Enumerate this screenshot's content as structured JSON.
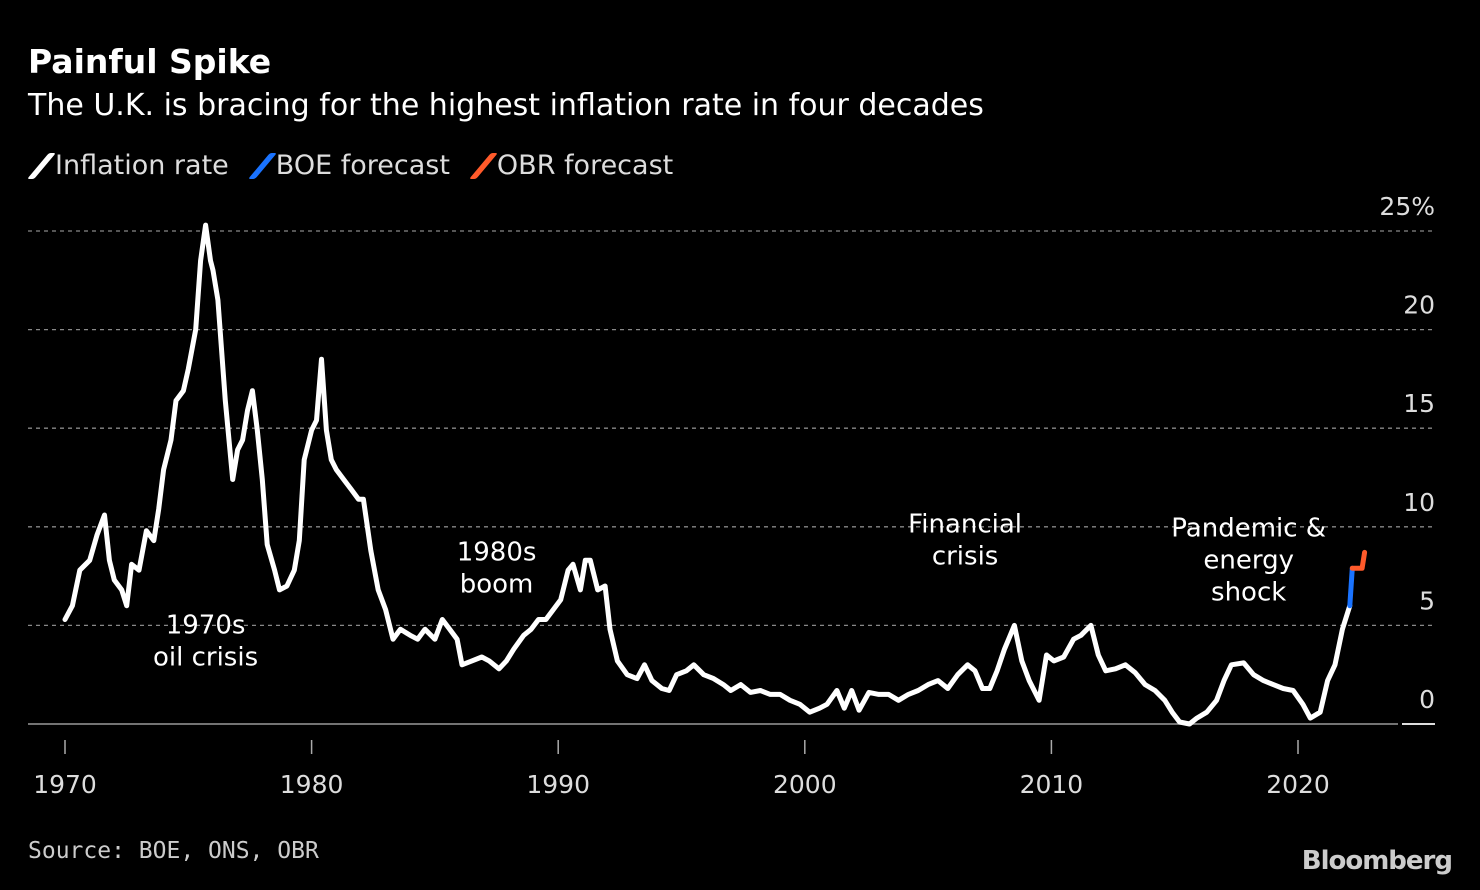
{
  "title": "Painful Spike",
  "subtitle": "The U.K. is bracing for the highest inflation rate in four decades",
  "source": "Source: BOE, ONS, OBR",
  "logo": "Bloomberg",
  "colors": {
    "inflation": "#ffffff",
    "boe": "#1a73ff",
    "obr": "#ff5a2a",
    "grid": "#777777",
    "text": "#dddddd"
  },
  "chart_data": {
    "type": "line",
    "title": "Painful Spike",
    "subtitle": "The U.K. is bracing for the highest inflation rate in four decades",
    "xlim": [
      1968.5,
      2025.5
    ],
    "ylim": [
      0,
      25
    ],
    "x_ticks": [
      1970,
      1980,
      1990,
      2000,
      2010,
      2020
    ],
    "x_tick_labels": [
      "1970",
      "1980",
      "1990",
      "2000",
      "2010",
      "2020"
    ],
    "y_ticks": [
      0,
      5,
      10,
      15,
      20,
      25
    ],
    "y_tick_labels": [
      "0",
      "5",
      "10",
      "15",
      "20",
      "25%"
    ],
    "grid": true,
    "legend": {
      "placement": "top-left",
      "entries": [
        "Inflation rate",
        "BOE forecast",
        "OBR forecast"
      ]
    },
    "series": [
      {
        "name": "Inflation rate",
        "color": "#ffffff",
        "points": [
          [
            1970.0,
            5.3
          ],
          [
            1970.3,
            6.0
          ],
          [
            1970.6,
            7.8
          ],
          [
            1971.0,
            8.3
          ],
          [
            1971.3,
            9.6
          ],
          [
            1971.6,
            10.6
          ],
          [
            1971.8,
            8.3
          ],
          [
            1972.0,
            7.3
          ],
          [
            1972.3,
            6.8
          ],
          [
            1972.5,
            6.0
          ],
          [
            1972.7,
            8.1
          ],
          [
            1973.0,
            7.8
          ],
          [
            1973.3,
            9.8
          ],
          [
            1973.6,
            9.3
          ],
          [
            1973.8,
            10.9
          ],
          [
            1974.0,
            12.9
          ],
          [
            1974.3,
            14.4
          ],
          [
            1974.5,
            16.4
          ],
          [
            1974.8,
            16.9
          ],
          [
            1975.0,
            18.0
          ],
          [
            1975.3,
            20.0
          ],
          [
            1975.5,
            23.5
          ],
          [
            1975.7,
            25.3
          ],
          [
            1975.9,
            23.5
          ],
          [
            1976.0,
            23.0
          ],
          [
            1976.2,
            21.5
          ],
          [
            1976.5,
            16.4
          ],
          [
            1976.8,
            12.4
          ],
          [
            1977.0,
            13.9
          ],
          [
            1977.2,
            14.4
          ],
          [
            1977.4,
            15.9
          ],
          [
            1977.6,
            16.9
          ],
          [
            1977.8,
            14.9
          ],
          [
            1978.0,
            12.4
          ],
          [
            1978.2,
            9.1
          ],
          [
            1978.5,
            7.8
          ],
          [
            1978.7,
            6.8
          ],
          [
            1979.0,
            7.0
          ],
          [
            1979.3,
            7.8
          ],
          [
            1979.5,
            9.3
          ],
          [
            1979.7,
            13.4
          ],
          [
            1980.0,
            14.9
          ],
          [
            1980.2,
            15.4
          ],
          [
            1980.4,
            18.5
          ],
          [
            1980.6,
            14.9
          ],
          [
            1980.8,
            13.4
          ],
          [
            1981.0,
            12.9
          ],
          [
            1981.3,
            12.4
          ],
          [
            1981.6,
            11.9
          ],
          [
            1981.9,
            11.4
          ],
          [
            1982.1,
            11.4
          ],
          [
            1982.4,
            8.8
          ],
          [
            1982.7,
            6.8
          ],
          [
            1983.0,
            5.8
          ],
          [
            1983.3,
            4.3
          ],
          [
            1983.6,
            4.8
          ],
          [
            1984.0,
            4.5
          ],
          [
            1984.3,
            4.3
          ],
          [
            1984.6,
            4.8
          ],
          [
            1985.0,
            4.3
          ],
          [
            1985.3,
            5.3
          ],
          [
            1985.6,
            4.8
          ],
          [
            1985.9,
            4.3
          ],
          [
            1986.1,
            3.0
          ],
          [
            1986.5,
            3.2
          ],
          [
            1986.9,
            3.4
          ],
          [
            1987.2,
            3.2
          ],
          [
            1987.6,
            2.8
          ],
          [
            1987.9,
            3.2
          ],
          [
            1988.2,
            3.8
          ],
          [
            1988.6,
            4.5
          ],
          [
            1988.9,
            4.8
          ],
          [
            1989.2,
            5.3
          ],
          [
            1989.5,
            5.3
          ],
          [
            1989.8,
            5.8
          ],
          [
            1990.1,
            6.3
          ],
          [
            1990.4,
            7.8
          ],
          [
            1990.6,
            8.1
          ],
          [
            1990.9,
            6.8
          ],
          [
            1991.1,
            8.3
          ],
          [
            1991.3,
            8.3
          ],
          [
            1991.6,
            6.8
          ],
          [
            1991.9,
            7.0
          ],
          [
            1992.1,
            4.8
          ],
          [
            1992.4,
            3.2
          ],
          [
            1992.8,
            2.5
          ],
          [
            1993.2,
            2.3
          ],
          [
            1993.5,
            3.0
          ],
          [
            1993.8,
            2.2
          ],
          [
            1994.2,
            1.8
          ],
          [
            1994.5,
            1.7
          ],
          [
            1994.8,
            2.5
          ],
          [
            1995.2,
            2.7
          ],
          [
            1995.5,
            3.0
          ],
          [
            1995.9,
            2.5
          ],
          [
            1996.3,
            2.3
          ],
          [
            1996.7,
            2.0
          ],
          [
            1997.0,
            1.7
          ],
          [
            1997.4,
            2.0
          ],
          [
            1997.8,
            1.6
          ],
          [
            1998.2,
            1.7
          ],
          [
            1998.6,
            1.5
          ],
          [
            1999.0,
            1.5
          ],
          [
            1999.4,
            1.2
          ],
          [
            1999.8,
            1.0
          ],
          [
            2000.2,
            0.6
          ],
          [
            2000.6,
            0.8
          ],
          [
            2000.9,
            1.0
          ],
          [
            2001.3,
            1.7
          ],
          [
            2001.6,
            0.8
          ],
          [
            2001.9,
            1.7
          ],
          [
            2002.2,
            0.7
          ],
          [
            2002.6,
            1.6
          ],
          [
            2003.0,
            1.5
          ],
          [
            2003.4,
            1.5
          ],
          [
            2003.8,
            1.2
          ],
          [
            2004.2,
            1.5
          ],
          [
            2004.6,
            1.7
          ],
          [
            2005.0,
            2.0
          ],
          [
            2005.4,
            2.2
          ],
          [
            2005.8,
            1.8
          ],
          [
            2006.2,
            2.5
          ],
          [
            2006.6,
            3.0
          ],
          [
            2006.9,
            2.7
          ],
          [
            2007.2,
            1.8
          ],
          [
            2007.5,
            1.8
          ],
          [
            2007.8,
            2.7
          ],
          [
            2008.1,
            3.8
          ],
          [
            2008.5,
            5.0
          ],
          [
            2008.8,
            3.2
          ],
          [
            2009.1,
            2.2
          ],
          [
            2009.5,
            1.2
          ],
          [
            2009.8,
            3.5
          ],
          [
            2010.1,
            3.2
          ],
          [
            2010.5,
            3.4
          ],
          [
            2010.9,
            4.3
          ],
          [
            2011.2,
            4.5
          ],
          [
            2011.6,
            5.0
          ],
          [
            2011.9,
            3.5
          ],
          [
            2012.2,
            2.7
          ],
          [
            2012.6,
            2.8
          ],
          [
            2013.0,
            3.0
          ],
          [
            2013.4,
            2.6
          ],
          [
            2013.8,
            2.0
          ],
          [
            2014.2,
            1.7
          ],
          [
            2014.6,
            1.2
          ],
          [
            2014.9,
            0.6
          ],
          [
            2015.2,
            0.1
          ],
          [
            2015.6,
            0.0
          ],
          [
            2015.9,
            0.3
          ],
          [
            2016.3,
            0.6
          ],
          [
            2016.7,
            1.2
          ],
          [
            2017.0,
            2.2
          ],
          [
            2017.3,
            3.0
          ],
          [
            2017.8,
            3.1
          ],
          [
            2018.2,
            2.5
          ],
          [
            2018.6,
            2.2
          ],
          [
            2019.0,
            2.0
          ],
          [
            2019.4,
            1.8
          ],
          [
            2019.8,
            1.7
          ],
          [
            2020.2,
            1.0
          ],
          [
            2020.5,
            0.3
          ],
          [
            2020.9,
            0.6
          ],
          [
            2021.2,
            2.2
          ],
          [
            2021.5,
            3.0
          ],
          [
            2021.8,
            4.8
          ],
          [
            2022.1,
            6.0
          ]
        ]
      },
      {
        "name": "BOE forecast",
        "color": "#1a73ff",
        "points": [
          [
            2022.1,
            6.0
          ],
          [
            2022.2,
            7.9
          ]
        ]
      },
      {
        "name": "OBR forecast",
        "color": "#ff5a2a",
        "points": [
          [
            2022.2,
            7.9
          ],
          [
            2022.6,
            7.9
          ],
          [
            2022.7,
            8.7
          ]
        ]
      }
    ],
    "annotations": [
      {
        "lines": [
          "1970s",
          "oil crisis"
        ],
        "x": 1975.7,
        "y": 4.6,
        "align": "left-anchor"
      },
      {
        "lines": [
          "1980s",
          "boom"
        ],
        "x": 1987.5,
        "y": 8.3
      },
      {
        "lines": [
          "Financial",
          "crisis"
        ],
        "x": 2006.5,
        "y": 9.7
      },
      {
        "lines": [
          "Pandemic &",
          "energy",
          "shock"
        ],
        "x": 2018.0,
        "y": 9.5
      }
    ]
  }
}
